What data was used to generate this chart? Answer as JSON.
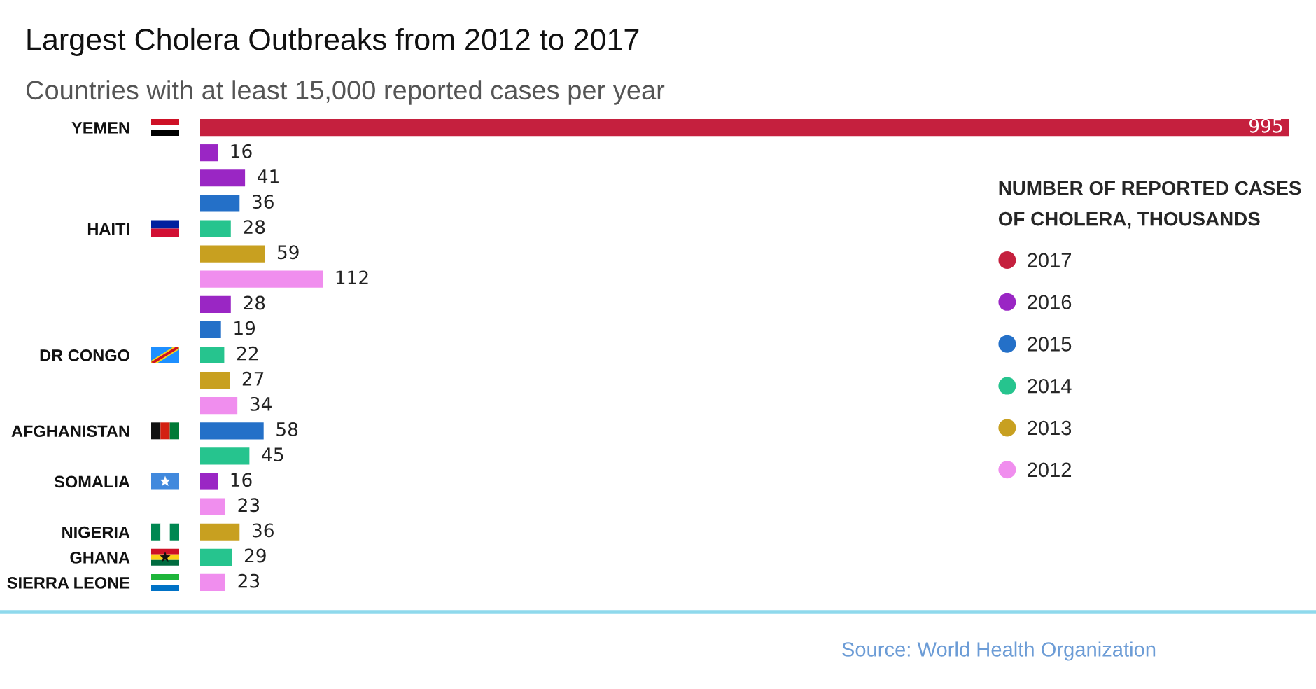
{
  "chart_data": {
    "type": "bar",
    "orientation": "horizontal",
    "stacked": true,
    "title": "Largest Cholera Outbreaks from 2012 to 2017",
    "subtitle": "Countries with at least 15,000 reported cases per year",
    "categories": [
      "YEMEN",
      null,
      null,
      null,
      "HAITI",
      null,
      null,
      null,
      null,
      "DR CONGO",
      null,
      null,
      "AFGHANISTAN",
      null,
      "SOMALIA",
      null,
      "NIGERIA",
      "GHANA",
      "SIERRA LEONE"
    ],
    "series": [
      {
        "name": "2017",
        "color": "#c5203e",
        "values": [
          995,
          null,
          null,
          null,
          null,
          null,
          null,
          null,
          null,
          null,
          null,
          null,
          null,
          null,
          null,
          null,
          null,
          null,
          null
        ]
      },
      {
        "name": "2016",
        "color": "#9a26c4",
        "values": [
          null,
          16,
          41,
          null,
          null,
          null,
          null,
          28,
          null,
          null,
          null,
          null,
          null,
          null,
          16,
          null,
          null,
          null,
          null
        ]
      },
      {
        "name": "2015",
        "color": "#2470c8",
        "values": [
          null,
          null,
          null,
          36,
          null,
          null,
          null,
          null,
          19,
          null,
          null,
          null,
          58,
          null,
          null,
          null,
          null,
          null,
          null
        ]
      },
      {
        "name": "2014",
        "color": "#26c48e",
        "values": [
          null,
          null,
          null,
          null,
          28,
          null,
          null,
          null,
          null,
          22,
          null,
          null,
          null,
          45,
          null,
          null,
          null,
          29,
          null
        ]
      },
      {
        "name": "2013",
        "color": "#c8a020",
        "values": [
          null,
          null,
          null,
          null,
          null,
          59,
          null,
          null,
          null,
          null,
          27,
          null,
          null,
          null,
          null,
          null,
          36,
          null,
          null
        ]
      },
      {
        "name": "2012",
        "color": "#f08eee",
        "values": [
          null,
          null,
          null,
          null,
          null,
          null,
          112,
          null,
          null,
          null,
          null,
          34,
          null,
          null,
          null,
          23,
          null,
          null,
          23
        ]
      }
    ],
    "data_labels": true,
    "legend": "right",
    "legend_title": "NUMBER OF REPORTED CASES OF CHOLERA, THOUSANDS",
    "tick_labels": "y",
    "annotations": [
      "Source: World Health Organization"
    ]
  }
}
